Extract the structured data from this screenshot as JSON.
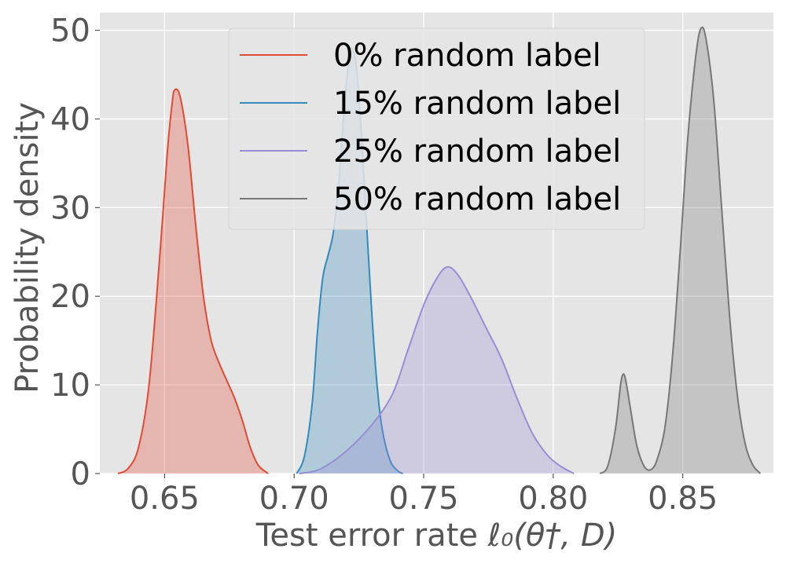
{
  "chart_data": {
    "type": "area",
    "xlabel_main": "Test error rate ",
    "xlabel_math": "ℓ₀(θ†, D)",
    "ylabel": "Probability density",
    "xlim": [
      0.625,
      0.885
    ],
    "ylim": [
      0,
      52
    ],
    "xticks": [
      "0.65",
      "0.70",
      "0.75",
      "0.80",
      "0.85"
    ],
    "yticks": [
      "0",
      "10",
      "20",
      "30",
      "40",
      "50"
    ],
    "grid": true,
    "legend_position": "top-center",
    "series": [
      {
        "name": "0% random label",
        "color": "#E24A33",
        "fill_opacity": 0.3,
        "points": [
          [
            0.632,
            0.0
          ],
          [
            0.636,
            0.6
          ],
          [
            0.64,
            3.0
          ],
          [
            0.644,
            10.0
          ],
          [
            0.648,
            24.0
          ],
          [
            0.651,
            36.0
          ],
          [
            0.653,
            42.0
          ],
          [
            0.654,
            43.3
          ],
          [
            0.656,
            42.5
          ],
          [
            0.659,
            37.0
          ],
          [
            0.662,
            28.0
          ],
          [
            0.665,
            20.0
          ],
          [
            0.668,
            15.0
          ],
          [
            0.671,
            12.5
          ],
          [
            0.674,
            10.5
          ],
          [
            0.677,
            8.5
          ],
          [
            0.68,
            6.0
          ],
          [
            0.683,
            3.0
          ],
          [
            0.686,
            1.0
          ],
          [
            0.689,
            0.2
          ],
          [
            0.69,
            0.0
          ]
        ]
      },
      {
        "name": "15% random label",
        "color": "#348ABD",
        "fill_opacity": 0.3,
        "points": [
          [
            0.701,
            0.0
          ],
          [
            0.704,
            2.0
          ],
          [
            0.707,
            8.0
          ],
          [
            0.709,
            16.0
          ],
          [
            0.711,
            22.0
          ],
          [
            0.713,
            24.5
          ],
          [
            0.715,
            27.0
          ],
          [
            0.717,
            32.0
          ],
          [
            0.719,
            40.0
          ],
          [
            0.721,
            46.5
          ],
          [
            0.722,
            48.0
          ],
          [
            0.724,
            46.0
          ],
          [
            0.726,
            38.0
          ],
          [
            0.728,
            28.0
          ],
          [
            0.73,
            18.0
          ],
          [
            0.732,
            10.0
          ],
          [
            0.734,
            5.0
          ],
          [
            0.737,
            1.5
          ],
          [
            0.74,
            0.3
          ],
          [
            0.742,
            0.0
          ]
        ]
      },
      {
        "name": "25% random label",
        "color": "#988ED5",
        "fill_opacity": 0.3,
        "points": [
          [
            0.702,
            0.0
          ],
          [
            0.71,
            0.5
          ],
          [
            0.72,
            2.5
          ],
          [
            0.73,
            5.5
          ],
          [
            0.738,
            9.0
          ],
          [
            0.744,
            14.0
          ],
          [
            0.75,
            19.0
          ],
          [
            0.755,
            22.0
          ],
          [
            0.759,
            23.3
          ],
          [
            0.763,
            22.5
          ],
          [
            0.768,
            20.0
          ],
          [
            0.774,
            16.5
          ],
          [
            0.78,
            13.0
          ],
          [
            0.786,
            8.5
          ],
          [
            0.792,
            4.5
          ],
          [
            0.798,
            2.0
          ],
          [
            0.803,
            0.8
          ],
          [
            0.808,
            0.0
          ]
        ]
      },
      {
        "name": "50% random label",
        "color": "#777777",
        "fill_opacity": 0.3,
        "points": [
          [
            0.818,
            0.0
          ],
          [
            0.821,
            0.8
          ],
          [
            0.824,
            5.0
          ],
          [
            0.826,
            10.0
          ],
          [
            0.827,
            11.2
          ],
          [
            0.828,
            10.5
          ],
          [
            0.83,
            7.0
          ],
          [
            0.832,
            3.5
          ],
          [
            0.834,
            1.5
          ],
          [
            0.836,
            0.5
          ],
          [
            0.838,
            0.5
          ],
          [
            0.84,
            1.5
          ],
          [
            0.843,
            5.0
          ],
          [
            0.846,
            13.0
          ],
          [
            0.849,
            25.0
          ],
          [
            0.852,
            38.0
          ],
          [
            0.855,
            47.0
          ],
          [
            0.857,
            50.2
          ],
          [
            0.859,
            49.0
          ],
          [
            0.862,
            42.0
          ],
          [
            0.865,
            30.0
          ],
          [
            0.868,
            18.0
          ],
          [
            0.871,
            9.0
          ],
          [
            0.874,
            3.5
          ],
          [
            0.877,
            1.0
          ],
          [
            0.88,
            0.0
          ]
        ]
      }
    ]
  }
}
